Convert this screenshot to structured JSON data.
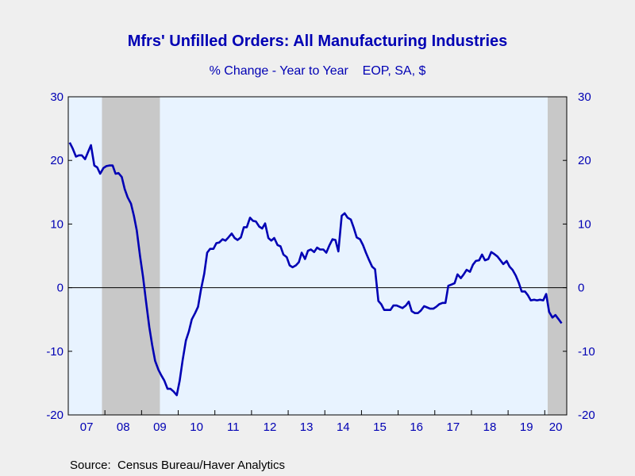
{
  "chart_data": {
    "type": "line",
    "title": "Mfrs' Unfilled Orders: All Manufacturing Industries",
    "subtitle": "% Change - Year to Year    EOP, SA, $",
    "source": "Source:  Census Bureau/Haver Analytics",
    "ylim": [
      -20,
      30
    ],
    "yticks": [
      -20,
      -10,
      0,
      10,
      20,
      30
    ],
    "y_axis_side": "both",
    "xlim": [
      2007.0,
      2020.6
    ],
    "xtick_labels": [
      "07",
      "08",
      "09",
      "10",
      "11",
      "12",
      "13",
      "14",
      "15",
      "16",
      "17",
      "18",
      "19",
      "20"
    ],
    "grid": false,
    "zero_line": true,
    "recessions": [
      [
        2007.92,
        2009.5
      ],
      [
        2020.08,
        2020.6
      ]
    ],
    "colors": {
      "series": "#0000b4",
      "text": "#0000b4",
      "plot_bg": "#e8f3ff",
      "recession": "#c8c8c8",
      "page_bg": "#efefef"
    },
    "series": [
      {
        "x": [
          2007.04,
          2007.12,
          2007.21,
          2007.29,
          2007.37,
          2007.46,
          2007.54,
          2007.62,
          2007.71,
          2007.79,
          2007.87,
          2007.96,
          2008.04,
          2008.12,
          2008.21,
          2008.29,
          2008.37,
          2008.46,
          2008.54,
          2008.62,
          2008.71,
          2008.79,
          2008.87,
          2008.96,
          2009.04,
          2009.12,
          2009.21,
          2009.29,
          2009.37,
          2009.46,
          2009.54,
          2009.62,
          2009.71,
          2009.79,
          2009.87,
          2009.96,
          2010.04,
          2010.12,
          2010.21,
          2010.29,
          2010.37,
          2010.46,
          2010.54,
          2010.62,
          2010.71,
          2010.79,
          2010.87,
          2010.96,
          2011.04,
          2011.12,
          2011.21,
          2011.29,
          2011.37,
          2011.46,
          2011.54,
          2011.62,
          2011.71,
          2011.79,
          2011.87,
          2011.96,
          2012.04,
          2012.12,
          2012.21,
          2012.29,
          2012.37,
          2012.46,
          2012.54,
          2012.62,
          2012.71,
          2012.79,
          2012.87,
          2012.96,
          2013.04,
          2013.12,
          2013.21,
          2013.29,
          2013.37,
          2013.46,
          2013.54,
          2013.62,
          2013.71,
          2013.79,
          2013.87,
          2013.96,
          2014.04,
          2014.12,
          2014.21,
          2014.29,
          2014.37,
          2014.46,
          2014.54,
          2014.62,
          2014.71,
          2014.79,
          2014.87,
          2014.96,
          2015.04,
          2015.12,
          2015.21,
          2015.29,
          2015.37,
          2015.46,
          2015.54,
          2015.62,
          2015.71,
          2015.79,
          2015.87,
          2015.96,
          2016.04,
          2016.12,
          2016.21,
          2016.29,
          2016.37,
          2016.46,
          2016.54,
          2016.62,
          2016.71,
          2016.79,
          2016.87,
          2016.96,
          2017.04,
          2017.12,
          2017.21,
          2017.29,
          2017.37,
          2017.46,
          2017.54,
          2017.62,
          2017.71,
          2017.79,
          2017.87,
          2017.96,
          2018.04,
          2018.12,
          2018.21,
          2018.29,
          2018.37,
          2018.46,
          2018.54,
          2018.62,
          2018.71,
          2018.79,
          2018.87,
          2018.96,
          2019.04,
          2019.12,
          2019.21,
          2019.29,
          2019.37,
          2019.46,
          2019.54,
          2019.62,
          2019.71,
          2019.79,
          2019.87,
          2019.96,
          2020.04,
          2020.12,
          2020.21,
          2020.29,
          2020.37,
          2020.46
        ],
        "y": [
          22.8,
          21.9,
          20.6,
          20.8,
          20.8,
          20.2,
          21.3,
          22.4,
          19.2,
          18.9,
          17.9,
          18.8,
          19.1,
          19.2,
          19.2,
          17.9,
          18.0,
          17.4,
          15.5,
          14.2,
          13.2,
          11.3,
          9.0,
          4.9,
          1.7,
          -2.1,
          -6.2,
          -9.0,
          -11.5,
          -12.9,
          -13.8,
          -14.6,
          -15.9,
          -15.9,
          -16.3,
          -16.9,
          -14.6,
          -11.4,
          -8.3,
          -6.9,
          -5.0,
          -4.0,
          -3.0,
          -0.3,
          2.2,
          5.5,
          6.1,
          6.1,
          7.0,
          7.1,
          7.6,
          7.4,
          7.9,
          8.5,
          7.8,
          7.5,
          7.9,
          9.5,
          9.5,
          11.0,
          10.5,
          10.4,
          9.6,
          9.3,
          10.1,
          7.8,
          7.4,
          7.8,
          6.7,
          6.5,
          5.2,
          4.8,
          3.5,
          3.2,
          3.5,
          4.0,
          5.5,
          4.5,
          5.8,
          6.0,
          5.6,
          6.3,
          6.0,
          6.0,
          5.5,
          6.6,
          7.6,
          7.5,
          5.7,
          11.3,
          11.7,
          11.0,
          10.7,
          9.4,
          7.9,
          7.6,
          6.7,
          5.5,
          4.3,
          3.3,
          2.9,
          -2.1,
          -2.6,
          -3.5,
          -3.5,
          -3.5,
          -2.8,
          -2.8,
          -3.0,
          -3.2,
          -2.8,
          -2.2,
          -3.7,
          -4.0,
          -4.0,
          -3.6,
          -2.9,
          -3.1,
          -3.3,
          -3.3,
          -3.0,
          -2.6,
          -2.4,
          -2.4,
          0.3,
          0.5,
          0.7,
          2.1,
          1.5,
          2.1,
          2.8,
          2.5,
          3.6,
          4.2,
          4.3,
          5.2,
          4.3,
          4.5,
          5.6,
          5.3,
          4.9,
          4.3,
          3.7,
          4.2,
          3.3,
          2.8,
          1.9,
          0.8,
          -0.6,
          -0.6,
          -1.2,
          -2.0,
          -1.9,
          -2.0,
          -1.9,
          -2.0,
          -1.0,
          -3.8,
          -4.7,
          -4.3,
          -4.9,
          -5.6
        ]
      }
    ]
  }
}
